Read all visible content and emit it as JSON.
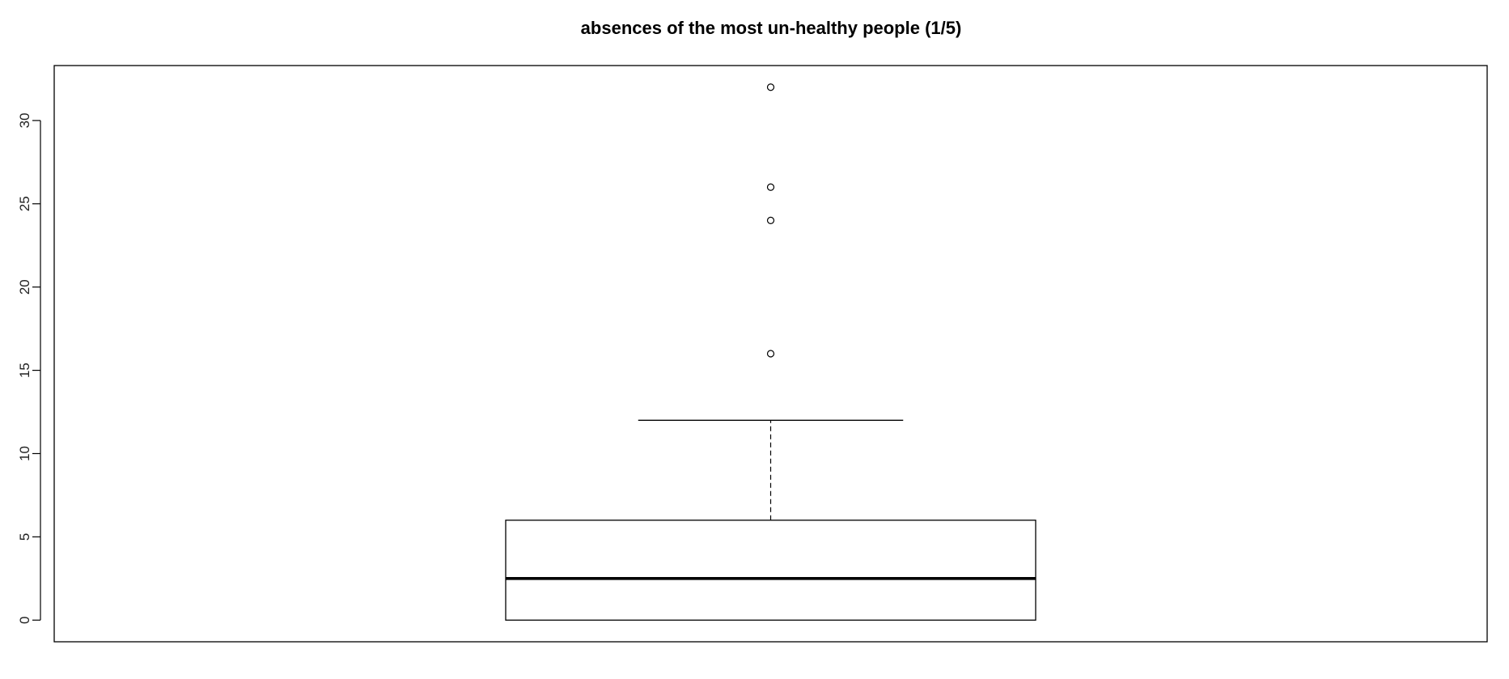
{
  "chart_data": {
    "type": "boxplot",
    "title": "absences of the most un-healthy people (1/5)",
    "xlabel": "",
    "ylabel": "",
    "ylim": [
      -1.3,
      33.3
    ],
    "yticks": [
      0,
      5,
      10,
      15,
      20,
      25,
      30
    ],
    "ytick_labels": [
      "0",
      "5",
      "10",
      "15",
      "20",
      "25",
      "30"
    ],
    "grid": false,
    "legend": "none",
    "box": {
      "min": 0,
      "q1": 0,
      "median": 2.5,
      "q3": 6,
      "whisker_low": 0,
      "whisker_high": 12
    },
    "outliers": [
      16,
      24,
      26,
      32
    ]
  }
}
